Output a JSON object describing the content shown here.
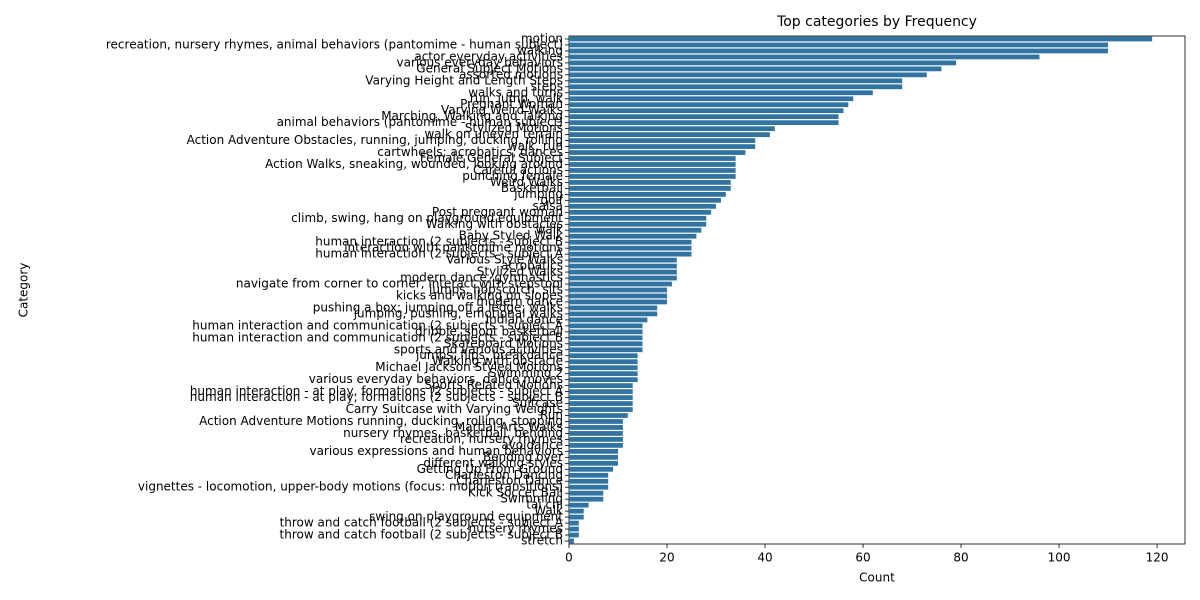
{
  "chart_data": {
    "type": "barh",
    "title": "Top categories by Frequency",
    "x_label": "Count",
    "y_label": "Category",
    "color": "#3274a1",
    "xlim": [
      0,
      125.7
    ],
    "xticks": [
      0,
      20,
      40,
      60,
      80,
      100,
      120
    ],
    "categories": [
      "motion",
      "recreation, nursery rhymes, animal behaviors (pantomime - human subject)",
      "walking",
      "actor everyday activities",
      "various everyday behaviors",
      "General Subject Motions",
      "assorted motions",
      "Varying Height and Length Steps",
      "steps",
      "walks and turns",
      "run, jump, walk",
      "Pregnant Woman",
      "Varying Weird Walks",
      "Marching, Walking and Talking",
      "animal behaviors (pantomime - human subject)",
      "Stylized Motions",
      "walk on uneven terrain",
      "Action Adventure Obstacles, running, jumping, ducking, rolling",
      "walk, run",
      "cartwheels; acrobatics; dances",
      "Female General Subject",
      "Action Walks, sneaking, wounded, looking around",
      "Careful actions",
      "punching female",
      "Weird Walks",
      "Basketball",
      "jumping",
      "golf",
      "salsa",
      "Post pregnant woman",
      "climb, swing, hang on playground equipment",
      "Walking with obstacles",
      "walk",
      "Baby Styled Walk",
      "human interaction (2 subjects - subject B",
      "interaction with pantomime motions",
      "human interaction (2 subjects - subject A",
      "Various Style Walks",
      "acrobatics",
      "Stylized Walks",
      "modern dance, gymnastics",
      "navigate from corner to corner, interact with stepstool",
      "jumps, hopscotch, sits",
      "kicks and walking on slopes",
      "modern dance",
      "pushing a box; jumping off a ledge; walks",
      "jumping, pushing, emotional walks",
      "Indian dance",
      "human interaction and communication (2 subjects - subject A",
      "dribble, shoot basketball",
      "human interaction and communication (2 subjects - subject B",
      "Skateboard Motions",
      "sports and various activities",
      "jumps, flips, breakdance",
      "Walking with obstacle",
      "Michael Jackson Styled Motions",
      "Swimming 2",
      "various everyday behaviors, dance moves",
      "Sports Related Motions",
      "human interaction - at play, formations (2 subjects - subject A",
      "human interaction - at play, formations (2 subjects - subject B",
      "Suitcase",
      "Carry Suitcase with Varying Weights",
      "Run",
      "Action Adventure Motions running, ducking, rolling, stopping",
      "Martial Arts Walks",
      "nursery rhymes, basketball, bending",
      "recreation, nursery rhymes",
      "avoidance",
      "various expressions and human behaviors",
      "Bending over",
      "different walking styles",
      "Getting Up From Ground",
      "Charleston Dancing",
      "Charleston Dance",
      "vignettes - locomotion, upper-body motions (focus: motion transitions)",
      "Kick Soccer Ball",
      "Swimming",
      "tai chi",
      "Walk",
      "swing on playground equipment",
      "throw and catch football (2 subjects - subject A",
      "nursery rhymes",
      "throw and catch football (2 subjects - subject B",
      "stretch"
    ],
    "values": [
      119,
      110,
      110,
      96,
      79,
      76,
      73,
      68,
      68,
      62,
      58,
      57,
      56,
      55,
      55,
      42,
      41,
      38,
      38,
      36,
      34,
      34,
      34,
      34,
      33,
      33,
      32,
      31,
      30,
      29,
      28,
      28,
      27,
      26,
      25,
      25,
      25,
      22,
      22,
      22,
      22,
      21,
      20,
      20,
      20,
      18,
      18,
      16,
      15,
      15,
      15,
      15,
      15,
      14,
      14,
      14,
      14,
      14,
      13,
      13,
      13,
      13,
      13,
      12,
      11,
      11,
      11,
      11,
      11,
      10,
      10,
      10,
      9,
      8,
      8,
      8,
      7,
      7,
      4,
      3,
      3,
      2,
      2,
      2,
      1
    ]
  }
}
